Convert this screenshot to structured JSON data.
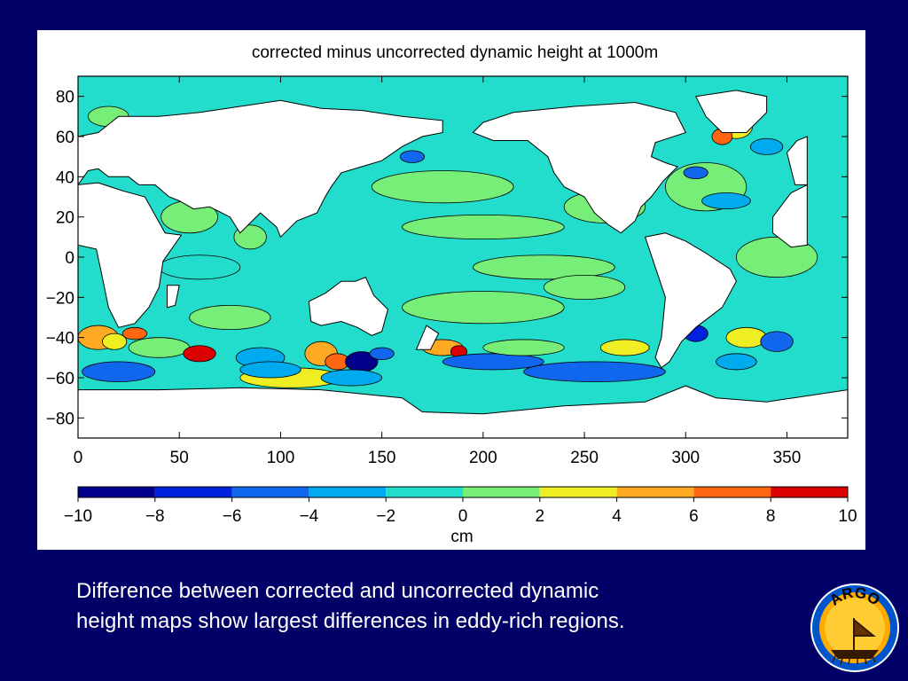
{
  "slide": {
    "caption_lines": [
      "Difference between corrected and uncorrected dynamic",
      "height maps show largest differences in eddy-rich regions."
    ],
    "background_color": "#000066",
    "logo": {
      "text": "ARGO",
      "icon": "argo-ship-logo"
    }
  },
  "chart_data": {
    "type": "heatmap",
    "title": "corrected minus uncorrected dynamic height at 1000m",
    "xlabel": "",
    "ylabel": "",
    "xlim": [
      0,
      380
    ],
    "ylim": [
      -90,
      90
    ],
    "x_ticks": [
      0,
      50,
      100,
      150,
      200,
      250,
      300,
      350
    ],
    "y_ticks": [
      80,
      60,
      40,
      20,
      0,
      -20,
      -40,
      -60,
      -80
    ],
    "y_tick_labels": [
      "80",
      "60",
      "40",
      "20",
      "0",
      "−20",
      "−40",
      "−60",
      "−80"
    ],
    "x_tick_labels": [
      "0",
      "50",
      "100",
      "150",
      "200",
      "250",
      "300",
      "350"
    ],
    "colorbar": {
      "label": "cm",
      "range": [
        -10,
        10
      ],
      "ticks": [
        -10,
        -8,
        -6,
        -4,
        -2,
        0,
        2,
        4,
        6,
        8,
        10
      ],
      "tick_labels": [
        "−10",
        "−8",
        "−6",
        "−4",
        "−2",
        "0",
        "2",
        "4",
        "6",
        "8",
        "10"
      ],
      "colors": [
        "#00008b",
        "#0022dd",
        "#1166ee",
        "#00aaee",
        "#22ddcc",
        "#77ee77",
        "#eeee22",
        "#ffaa22",
        "#ff6611",
        "#dd0000"
      ]
    },
    "base_field_color": "#22ddcc",
    "land_color": "#ffffff",
    "anomalies": [
      {
        "lon": 15,
        "lat": 70,
        "rx": 10,
        "ry": 5,
        "value": 1
      },
      {
        "lon": 55,
        "lat": 20,
        "rx": 14,
        "ry": 8,
        "value": 1
      },
      {
        "lon": 85,
        "lat": 10,
        "rx": 8,
        "ry": 6,
        "value": 1
      },
      {
        "lon": 60,
        "lat": -5,
        "rx": 20,
        "ry": 6,
        "value": -1
      },
      {
        "lon": 75,
        "lat": -30,
        "rx": 20,
        "ry": 6,
        "value": 1
      },
      {
        "lon": 165,
        "lat": 50,
        "rx": 6,
        "ry": 3,
        "value": -5
      },
      {
        "lon": 180,
        "lat": 35,
        "rx": 35,
        "ry": 8,
        "value": 1
      },
      {
        "lon": 200,
        "lat": 15,
        "rx": 40,
        "ry": 6,
        "value": 1
      },
      {
        "lon": 230,
        "lat": -5,
        "rx": 35,
        "ry": 6,
        "value": 1
      },
      {
        "lon": 200,
        "lat": -25,
        "rx": 40,
        "ry": 8,
        "value": 1
      },
      {
        "lon": 260,
        "lat": 25,
        "rx": 20,
        "ry": 8,
        "value": 1
      },
      {
        "lon": 250,
        "lat": -15,
        "rx": 20,
        "ry": 6,
        "value": 1
      },
      {
        "lon": 345,
        "lat": 0,
        "rx": 20,
        "ry": 10,
        "value": 1
      },
      {
        "lon": 310,
        "lat": 35,
        "rx": 20,
        "ry": 12,
        "value": 1
      },
      {
        "lon": 325,
        "lat": 65,
        "rx": 8,
        "ry": 6,
        "value": 3
      },
      {
        "lon": 318,
        "lat": 60,
        "rx": 5,
        "ry": 4,
        "value": 7
      },
      {
        "lon": 340,
        "lat": 55,
        "rx": 8,
        "ry": 4,
        "value": -3
      },
      {
        "lon": 305,
        "lat": 42,
        "rx": 6,
        "ry": 3,
        "value": -5
      },
      {
        "lon": 320,
        "lat": 28,
        "rx": 12,
        "ry": 4,
        "value": -3
      },
      {
        "lon": 10,
        "lat": -40,
        "rx": 10,
        "ry": 6,
        "value": 5
      },
      {
        "lon": 18,
        "lat": -42,
        "rx": 6,
        "ry": 4,
        "value": 3
      },
      {
        "lon": 28,
        "lat": -38,
        "rx": 6,
        "ry": 3,
        "value": 7
      },
      {
        "lon": 40,
        "lat": -45,
        "rx": 15,
        "ry": 5,
        "value": 1
      },
      {
        "lon": 20,
        "lat": -57,
        "rx": 18,
        "ry": 5,
        "value": -5
      },
      {
        "lon": 60,
        "lat": -48,
        "rx": 8,
        "ry": 4,
        "value": 9
      },
      {
        "lon": 90,
        "lat": -50,
        "rx": 12,
        "ry": 5,
        "value": -3
      },
      {
        "lon": 105,
        "lat": -60,
        "rx": 25,
        "ry": 5,
        "value": 3
      },
      {
        "lon": 95,
        "lat": -56,
        "rx": 15,
        "ry": 4,
        "value": -3
      },
      {
        "lon": 120,
        "lat": -48,
        "rx": 8,
        "ry": 6,
        "value": 5
      },
      {
        "lon": 128,
        "lat": -52,
        "rx": 6,
        "ry": 4,
        "value": 7
      },
      {
        "lon": 140,
        "lat": -52,
        "rx": 8,
        "ry": 5,
        "value": -9
      },
      {
        "lon": 150,
        "lat": -48,
        "rx": 6,
        "ry": 3,
        "value": -5
      },
      {
        "lon": 135,
        "lat": -60,
        "rx": 15,
        "ry": 4,
        "value": -3
      },
      {
        "lon": 180,
        "lat": -45,
        "rx": 10,
        "ry": 4,
        "value": 5
      },
      {
        "lon": 188,
        "lat": -47,
        "rx": 4,
        "ry": 3,
        "value": 9
      },
      {
        "lon": 205,
        "lat": -52,
        "rx": 25,
        "ry": 4,
        "value": -5
      },
      {
        "lon": 255,
        "lat": -57,
        "rx": 35,
        "ry": 5,
        "value": -5
      },
      {
        "lon": 220,
        "lat": -45,
        "rx": 20,
        "ry": 4,
        "value": 1
      },
      {
        "lon": 270,
        "lat": -45,
        "rx": 12,
        "ry": 4,
        "value": 3
      },
      {
        "lon": 305,
        "lat": -38,
        "rx": 6,
        "ry": 4,
        "value": -7
      },
      {
        "lon": 330,
        "lat": -40,
        "rx": 10,
        "ry": 5,
        "value": 3
      },
      {
        "lon": 345,
        "lat": -42,
        "rx": 8,
        "ry": 5,
        "value": -5
      },
      {
        "lon": 325,
        "lat": -52,
        "rx": 10,
        "ry": 4,
        "value": -3
      }
    ],
    "land": [
      {
        "name": "north-america",
        "points": [
          [
            200,
            67
          ],
          [
            215,
            72
          ],
          [
            245,
            75
          ],
          [
            275,
            77
          ],
          [
            295,
            72
          ],
          [
            300,
            62
          ],
          [
            285,
            57
          ],
          [
            283,
            50
          ],
          [
            290,
            47
          ],
          [
            296,
            45
          ],
          [
            289,
            38
          ],
          [
            283,
            30
          ],
          [
            278,
            25
          ],
          [
            275,
            18
          ],
          [
            268,
            12
          ],
          [
            262,
            16
          ],
          [
            255,
            22
          ],
          [
            250,
            30
          ],
          [
            240,
            35
          ],
          [
            235,
            42
          ],
          [
            232,
            50
          ],
          [
            222,
            58
          ],
          [
            205,
            58
          ],
          [
            195,
            62
          ]
        ]
      },
      {
        "name": "greenland",
        "points": [
          [
            305,
            80
          ],
          [
            325,
            83
          ],
          [
            340,
            80
          ],
          [
            340,
            72
          ],
          [
            330,
            62
          ],
          [
            318,
            62
          ],
          [
            310,
            70
          ]
        ]
      },
      {
        "name": "south-america",
        "points": [
          [
            280,
            10
          ],
          [
            290,
            12
          ],
          [
            300,
            8
          ],
          [
            310,
            2
          ],
          [
            322,
            -6
          ],
          [
            325,
            -12
          ],
          [
            318,
            -25
          ],
          [
            305,
            -35
          ],
          [
            298,
            -42
          ],
          [
            292,
            -52
          ],
          [
            288,
            -55
          ],
          [
            285,
            -50
          ],
          [
            288,
            -40
          ],
          [
            290,
            -20
          ],
          [
            285,
            -5
          ]
        ]
      },
      {
        "name": "eurasia-west",
        "points": [
          [
            0,
            36
          ],
          [
            0,
            50
          ],
          [
            -10,
            55
          ],
          [
            0,
            60
          ],
          [
            10,
            62
          ],
          [
            20,
            70
          ],
          [
            40,
            70
          ],
          [
            60,
            72
          ],
          [
            80,
            75
          ],
          [
            100,
            78
          ],
          [
            120,
            74
          ],
          [
            140,
            73
          ],
          [
            160,
            70
          ],
          [
            180,
            68
          ],
          [
            180,
            62
          ],
          [
            170,
            60
          ],
          [
            160,
            55
          ],
          [
            150,
            48
          ],
          [
            140,
            45
          ],
          [
            130,
            42
          ],
          [
            125,
            35
          ],
          [
            122,
            30
          ],
          [
            118,
            22
          ],
          [
            108,
            18
          ],
          [
            100,
            10
          ],
          [
            98,
            15
          ],
          [
            90,
            22
          ],
          [
            80,
            12
          ],
          [
            75,
            20
          ],
          [
            65,
            25
          ],
          [
            57,
            24
          ],
          [
            50,
            28
          ],
          [
            45,
            30
          ],
          [
            38,
            36
          ],
          [
            30,
            36
          ],
          [
            25,
            40
          ],
          [
            15,
            40
          ],
          [
            10,
            44
          ],
          [
            5,
            43
          ]
        ]
      },
      {
        "name": "africa",
        "points": [
          [
            0,
            36
          ],
          [
            10,
            37
          ],
          [
            22,
            33
          ],
          [
            33,
            30
          ],
          [
            43,
            12
          ],
          [
            51,
            11
          ],
          [
            42,
            -2
          ],
          [
            40,
            -15
          ],
          [
            35,
            -25
          ],
          [
            28,
            -33
          ],
          [
            20,
            -35
          ],
          [
            15,
            -25
          ],
          [
            12,
            -10
          ],
          [
            9,
            4
          ],
          [
            0,
            6
          ]
        ]
      },
      {
        "name": "australia",
        "points": [
          [
            114,
            -22
          ],
          [
            122,
            -18
          ],
          [
            130,
            -12
          ],
          [
            137,
            -12
          ],
          [
            142,
            -10
          ],
          [
            146,
            -19
          ],
          [
            153,
            -26
          ],
          [
            150,
            -37
          ],
          [
            145,
            -39
          ],
          [
            138,
            -35
          ],
          [
            130,
            -32
          ],
          [
            120,
            -34
          ],
          [
            115,
            -32
          ]
        ]
      },
      {
        "name": "antarctica",
        "points": [
          [
            0,
            -66
          ],
          [
            40,
            -66
          ],
          [
            80,
            -65
          ],
          [
            120,
            -66
          ],
          [
            160,
            -70
          ],
          [
            170,
            -77
          ],
          [
            200,
            -78
          ],
          [
            240,
            -74
          ],
          [
            280,
            -72
          ],
          [
            300,
            -64
          ],
          [
            315,
            -70
          ],
          [
            340,
            -72
          ],
          [
            380,
            -66
          ],
          [
            380,
            -90
          ],
          [
            0,
            -90
          ]
        ]
      },
      {
        "name": "madagascar",
        "points": [
          [
            44,
            -14
          ],
          [
            50,
            -14
          ],
          [
            48,
            -24
          ],
          [
            44,
            -25
          ]
        ]
      },
      {
        "name": "new-zealand",
        "points": [
          [
            172,
            -34
          ],
          [
            178,
            -38
          ],
          [
            174,
            -46
          ],
          [
            167,
            -46
          ]
        ]
      },
      {
        "name": "europe-wrap",
        "points": [
          [
            360,
            36
          ],
          [
            360,
            60
          ],
          [
            355,
            58
          ],
          [
            350,
            52
          ],
          [
            352,
            44
          ],
          [
            354,
            36
          ]
        ]
      },
      {
        "name": "africa-wrap",
        "points": [
          [
            360,
            6
          ],
          [
            360,
            36
          ],
          [
            352,
            32
          ],
          [
            343,
            20
          ],
          [
            343,
            12
          ],
          [
            352,
            5
          ]
        ]
      }
    ]
  }
}
